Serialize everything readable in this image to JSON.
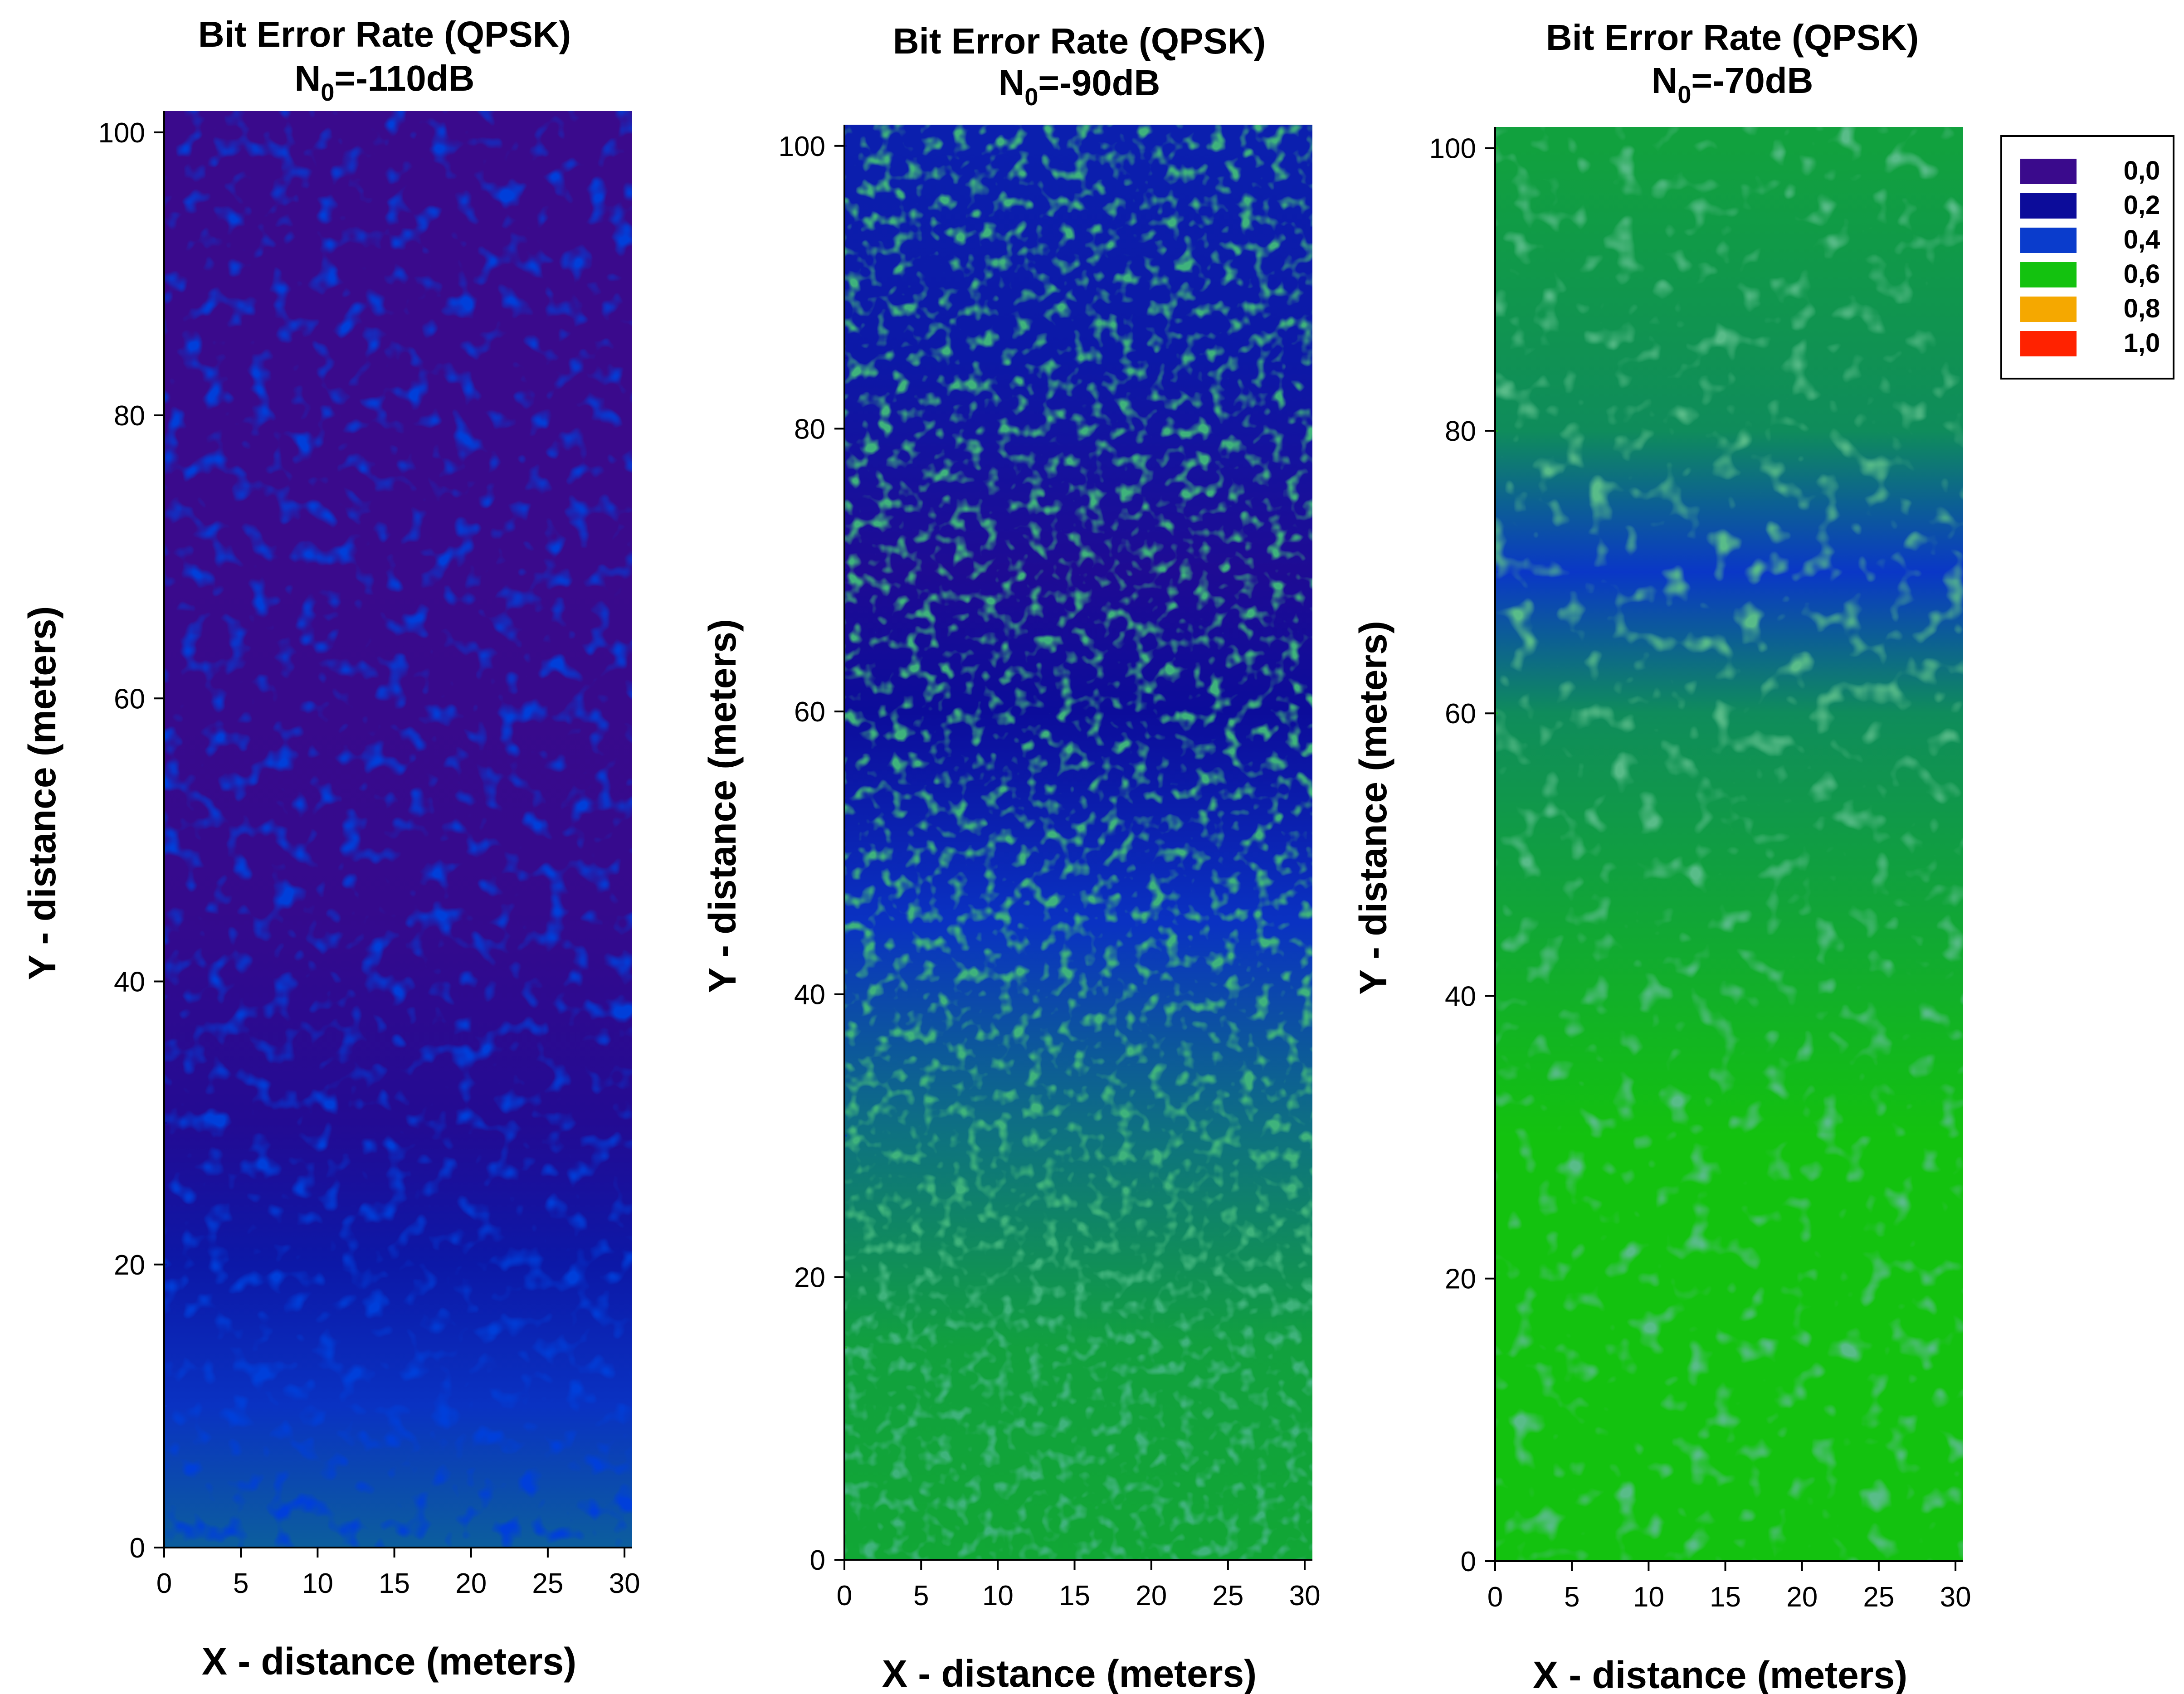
{
  "figure": {
    "charts": [
      {
        "title_line1": "Bit Error Rate (QPSK)",
        "title_n": "N",
        "title_sub": "0",
        "title_rest": "=-110dB",
        "xlabel": "X - distance (meters)",
        "ylabel": "Y - distance (meters)"
      },
      {
        "title_line1": "Bit Error Rate (QPSK)",
        "title_n": "N",
        "title_sub": "0",
        "title_rest": "=-90dB",
        "xlabel": "X - distance (meters)",
        "ylabel": "Y - distance (meters)"
      },
      {
        "title_line1": "Bit Error Rate (QPSK)",
        "title_n": "N",
        "title_sub": "0",
        "title_rest": "=-70dB",
        "xlabel": "X - distance (meters)",
        "ylabel": "Y - distance (meters)"
      }
    ],
    "x_ticks": [
      "0",
      "5",
      "10",
      "15",
      "20",
      "25",
      "30"
    ],
    "y_ticks": [
      "0",
      "20",
      "40",
      "60",
      "80",
      "100"
    ],
    "legend": [
      {
        "label": "0,0",
        "color": "#3a0a8c"
      },
      {
        "label": "0,2",
        "color": "#0c0c9a"
      },
      {
        "label": "0,4",
        "color": "#0a3ccc"
      },
      {
        "label": "0,6",
        "color": "#13c20f"
      },
      {
        "label": "0,8",
        "color": "#f5a800"
      },
      {
        "label": "1,0",
        "color": "#ff2200"
      }
    ]
  },
  "chart_data": [
    {
      "type": "heatmap",
      "title": "Bit Error Rate (QPSK) N0=-110dB",
      "xlabel": "X - distance (meters)",
      "ylabel": "Y - distance (meters)",
      "xlim": [
        0,
        30.5
      ],
      "ylim": [
        0,
        101.5
      ],
      "levels": [
        0.0,
        0.2,
        0.4,
        0.6,
        0.8,
        1.0
      ],
      "y_band_ber": [
        {
          "y": 100,
          "ber": 0.0
        },
        {
          "y": 70,
          "ber": 0.0
        },
        {
          "y": 45,
          "ber": 0.02
        },
        {
          "y": 30,
          "ber": 0.1
        },
        {
          "y": 20,
          "ber": 0.25
        },
        {
          "y": 10,
          "ber": 0.36
        },
        {
          "y": 0,
          "ber": 0.45
        }
      ]
    },
    {
      "type": "heatmap",
      "title": "Bit Error Rate (QPSK) N0=-90dB",
      "xlabel": "X - distance (meters)",
      "ylabel": "Y - distance (meters)",
      "xlim": [
        0,
        30.5
      ],
      "ylim": [
        0,
        101.5
      ],
      "levels": [
        0.0,
        0.2,
        0.4,
        0.6,
        0.8,
        1.0
      ],
      "y_band_ber": [
        {
          "y": 100,
          "ber": 0.28
        },
        {
          "y": 85,
          "ber": 0.25
        },
        {
          "y": 70,
          "ber": 0.12
        },
        {
          "y": 60,
          "ber": 0.2
        },
        {
          "y": 45,
          "ber": 0.36
        },
        {
          "y": 30,
          "ber": 0.48
        },
        {
          "y": 15,
          "ber": 0.55
        },
        {
          "y": 0,
          "ber": 0.56
        }
      ]
    },
    {
      "type": "heatmap",
      "title": "Bit Error Rate (QPSK) N0=-70dB",
      "xlabel": "X - distance (meters)",
      "ylabel": "Y - distance (meters)",
      "xlim": [
        0,
        30.5
      ],
      "ylim": [
        0,
        101.5
      ],
      "levels": [
        0.0,
        0.2,
        0.4,
        0.6,
        0.8,
        1.0
      ],
      "y_band_ber": [
        {
          "y": 100,
          "ber": 0.55
        },
        {
          "y": 80,
          "ber": 0.52
        },
        {
          "y": 70,
          "ber": 0.38
        },
        {
          "y": 60,
          "ber": 0.52
        },
        {
          "y": 45,
          "ber": 0.56
        },
        {
          "y": 30,
          "ber": 0.6
        },
        {
          "y": 0,
          "ber": 0.6
        }
      ]
    }
  ]
}
